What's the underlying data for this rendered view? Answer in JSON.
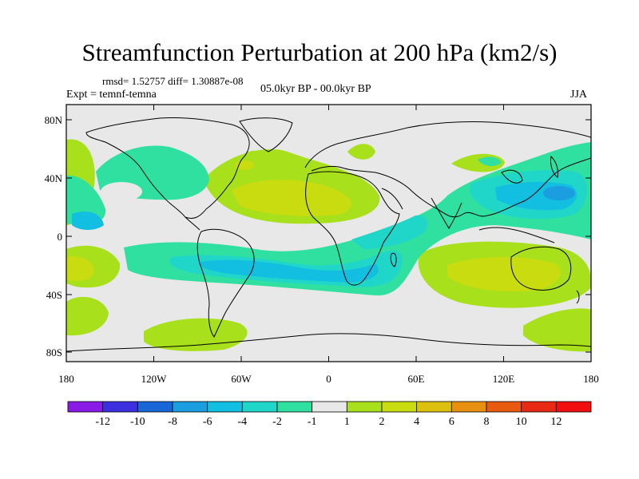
{
  "title": "Streamfunction Perturbation at 200 hPa (km2/s)",
  "stats": "rmsd= 1.52757  diff= 1.30887e-08",
  "experiment": "Expt = temnf-temna",
  "period": "05.0kyr BP - 00.0kyr BP",
  "season": "JJA",
  "lat_ticks": [
    "80N",
    "40N",
    "0",
    "40S",
    "80S"
  ],
  "lon_ticks": [
    "180",
    "120W",
    "60W",
    "0",
    "60E",
    "120E",
    "180"
  ],
  "colorbar": {
    "labels": [
      "-12",
      "-10",
      "-8",
      "-6",
      "-4",
      "-2",
      "-1",
      "1",
      "2",
      "4",
      "6",
      "8",
      "10",
      "12"
    ],
    "colors": [
      "#8a1ae6",
      "#3c2fe0",
      "#1866d8",
      "#1a9ee0",
      "#12bfe0",
      "#20d6c8",
      "#30e0a0",
      "#e8e8e8",
      "#a8e01c",
      "#c8dc10",
      "#dcc010",
      "#e89010",
      "#e85a10",
      "#e82a14",
      "#f00e0e"
    ]
  }
}
